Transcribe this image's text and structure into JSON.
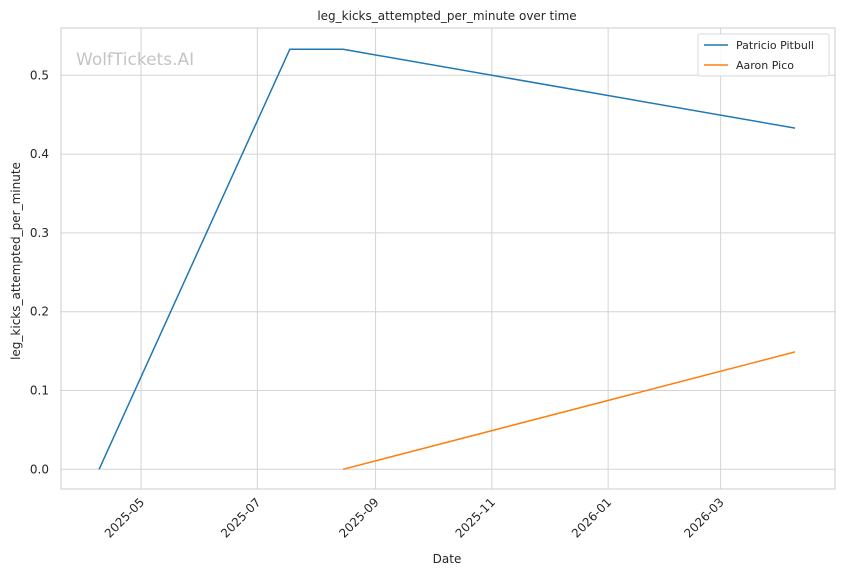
{
  "watermark": "WolfTickets.AI",
  "chart_data": {
    "type": "line",
    "title": "leg_kicks_attempted_per_minute over time",
    "xlabel": "Date",
    "ylabel": "leg_kicks_attempted_per_minute",
    "x_type": "date",
    "xlim": [
      "2025-03-20",
      "2026-04-30"
    ],
    "ylim": [
      -0.025,
      0.56
    ],
    "x_ticks": [
      "2025-05-01",
      "2025-07-01",
      "2025-09-01",
      "2025-11-01",
      "2026-01-01",
      "2026-03-01"
    ],
    "x_tick_labels": [
      "2025-05",
      "2025-07",
      "2025-09",
      "2025-11",
      "2026-01",
      "2026-03"
    ],
    "y_ticks": [
      0.0,
      0.1,
      0.2,
      0.3,
      0.4,
      0.5
    ],
    "y_tick_labels": [
      "0.0",
      "0.1",
      "0.2",
      "0.3",
      "0.4",
      "0.5"
    ],
    "grid": true,
    "legend_position": "top-right",
    "series": [
      {
        "name": "Patricio Pitbull",
        "color": "#1f77b4",
        "x": [
          "2025-04-09",
          "2025-07-18",
          "2025-08-15",
          "2026-04-09"
        ],
        "y": [
          0.0,
          0.533,
          0.533,
          0.433
        ]
      },
      {
        "name": "Aaron Pico",
        "color": "#ff7f0e",
        "x": [
          "2025-08-15",
          "2026-04-09"
        ],
        "y": [
          0.0,
          0.149
        ]
      }
    ]
  }
}
